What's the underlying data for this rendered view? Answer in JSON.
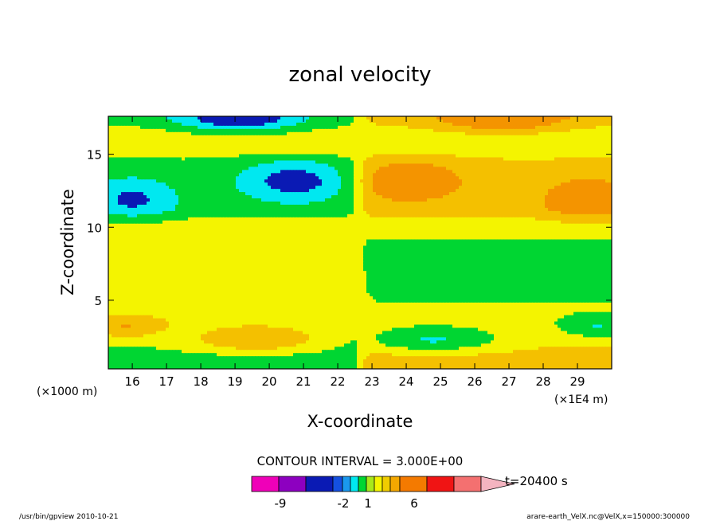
{
  "chart_data": {
    "type": "heatmap",
    "title": "zonal velocity",
    "xlabel": "X-coordinate",
    "ylabel": "Z-coordinate",
    "x_unit": "(×1E4 m)",
    "y_unit": "(×1000 m)",
    "xlim": [
      15.3,
      30.0
    ],
    "ylim": [
      0.3,
      17.6
    ],
    "x_ticks": [
      "16",
      "17",
      "18",
      "19",
      "20",
      "21",
      "22",
      "23",
      "24",
      "25",
      "26",
      "27",
      "28",
      "29"
    ],
    "x_tick_values": [
      16,
      17,
      18,
      19,
      20,
      21,
      22,
      23,
      24,
      25,
      26,
      27,
      28,
      29
    ],
    "y_ticks": [
      "5",
      "10",
      "15"
    ],
    "y_tick_values": [
      5,
      10,
      15
    ],
    "contour_interval_text": "CONTOUR INTERVAL = 3.000E+00",
    "time_label": "t=20400 s",
    "colorbar": {
      "colors": [
        "#ef00b8",
        "#8d00c0",
        "#0a1ab4",
        "#1450e0",
        "#1a98ee",
        "#00e8f0",
        "#00d632",
        "#a8e81a",
        "#f4f400",
        "#f0cc00",
        "#f4a800",
        "#f47a00",
        "#f01414",
        "#f47070",
        "#f4b4c0"
      ],
      "labels": [
        "-9",
        "-2",
        "1",
        "6"
      ],
      "label_positions": [
        1,
        6,
        8,
        11
      ]
    },
    "level_colors": {
      "-3": "#0a1ab4",
      "-2": "#00e8f0",
      "-1": "#00d632",
      "0": "#f4f400",
      "1": "#f4c000",
      "2": "#f49400"
    },
    "features": [
      {
        "x": 20.8,
        "y": 13.2,
        "sx": 1.7,
        "sy": 1.4,
        "amp": -2.4
      },
      {
        "x": 16.0,
        "y": 12.0,
        "sx": 1.3,
        "sy": 1.5,
        "amp": -1.9
      },
      {
        "x": 19.1,
        "y": 17.4,
        "sx": 1.8,
        "sy": 0.9,
        "amp": -2.7
      },
      {
        "x": 24.0,
        "y": 13.2,
        "sx": 1.7,
        "sy": 1.4,
        "amp": 1.9
      },
      {
        "x": 29.3,
        "y": 12.0,
        "sx": 1.3,
        "sy": 1.5,
        "amp": 1.7
      },
      {
        "x": 26.8,
        "y": 17.4,
        "sx": 1.8,
        "sy": 0.9,
        "amp": 2.2
      },
      {
        "x": 19.6,
        "y": 2.2,
        "sx": 1.8,
        "sy": 0.8,
        "amp": 1.8
      },
      {
        "x": 24.8,
        "y": 2.2,
        "sx": 1.9,
        "sy": 0.8,
        "amp": -1.9
      },
      {
        "x": 15.8,
        "y": 3.1,
        "sx": 1.0,
        "sy": 0.7,
        "amp": 1.4
      },
      {
        "x": 29.6,
        "y": 3.1,
        "sx": 1.0,
        "sy": 0.7,
        "amp": -1.4
      }
    ],
    "base_rows": [
      {
        "y": 0.3,
        "left": -1.4,
        "right": 1.4
      },
      {
        "y": 1.3,
        "left": -0.8,
        "right": 0.8
      },
      {
        "y": 3.5,
        "left": 0.3,
        "right": -0.3
      },
      {
        "y": 5.5,
        "left": 0.25,
        "right": -0.6
      },
      {
        "y": 8.5,
        "left": 0.3,
        "right": -0.9
      },
      {
        "y": 10.2,
        "left": 0.0,
        "right": 0.0
      },
      {
        "y": 11.2,
        "left": -0.9,
        "right": 0.9
      },
      {
        "y": 14.5,
        "left": -0.6,
        "right": 0.6
      },
      {
        "y": 15.8,
        "left": 0.4,
        "right": -0.4
      },
      {
        "y": 17.6,
        "left": -0.9,
        "right": 0.9
      }
    ]
  },
  "footer": {
    "left": "/usr/bin/gpview   2010-10-21",
    "right": "arare-earth_VelX.nc@VelX,x=150000:300000"
  }
}
